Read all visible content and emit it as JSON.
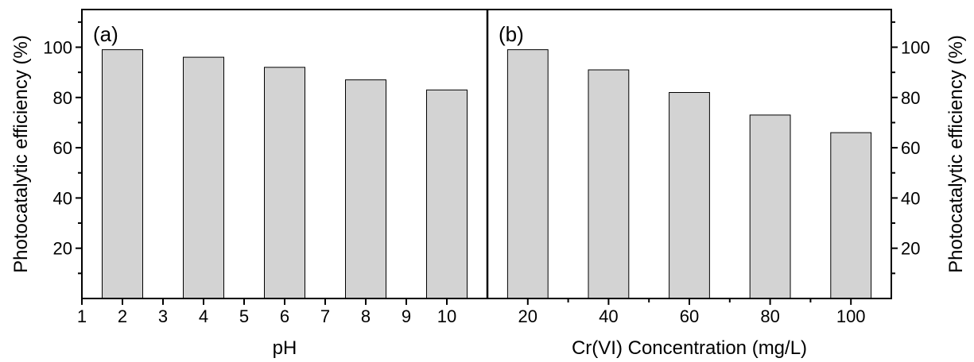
{
  "chart_data": [
    {
      "type": "bar",
      "panel_label": "(a)",
      "title": "",
      "xlabel": "pH",
      "ylabel": "Photocatalytic efficiency (%)",
      "ylabel_side": "left",
      "x_ticks": [
        1,
        2,
        3,
        4,
        5,
        6,
        7,
        8,
        9,
        10
      ],
      "xlim": [
        1,
        11
      ],
      "ylim": [
        0,
        115
      ],
      "y_ticks": [
        20,
        40,
        60,
        80,
        100
      ],
      "categories": [
        2,
        4,
        6,
        8,
        10
      ],
      "values": [
        99,
        96,
        92,
        87,
        83
      ],
      "bar_color": "#d3d3d3",
      "grid": false,
      "legend": "none"
    },
    {
      "type": "bar",
      "panel_label": "(b)",
      "title": "",
      "xlabel": "Cr(VI) Concentration (mg/L)",
      "ylabel": "Photocatalytic efficiency (%)",
      "ylabel_side": "right",
      "x_ticks": [
        20,
        40,
        60,
        80,
        100
      ],
      "xlim": [
        10,
        110
      ],
      "ylim": [
        0,
        115
      ],
      "y_ticks": [
        20,
        40,
        60,
        80,
        100
      ],
      "categories": [
        20,
        40,
        60,
        80,
        100
      ],
      "values": [
        99,
        91,
        82,
        73,
        66
      ],
      "bar_color": "#d3d3d3",
      "grid": false,
      "legend": "none"
    }
  ]
}
